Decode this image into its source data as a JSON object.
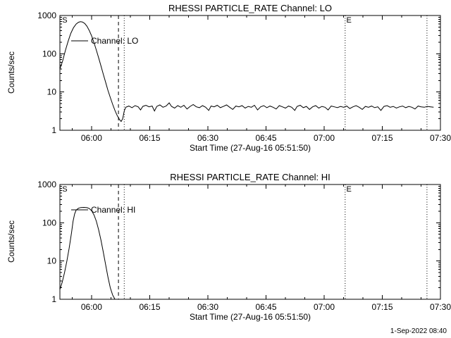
{
  "footer": {
    "timestamp": "1-Sep-2022 08:40"
  },
  "colors": {
    "background": "#ffffff",
    "foreground": "#000000"
  },
  "chart_data": [
    {
      "id": "lo",
      "type": "line",
      "title": "RHESSI PARTICLE_RATE Channel: LO",
      "xlabel": "Start Time (27-Aug-16 05:51:50)",
      "ylabel": "Counts/sec",
      "yscale": "log",
      "ylim": [
        1,
        1000
      ],
      "yticks": [
        1,
        10,
        100,
        1000
      ],
      "ytick_labels": [
        "1",
        "10",
        "100",
        "1000"
      ],
      "x_span_minutes": 98.17,
      "xticks_minutes": [
        8.17,
        23.17,
        38.17,
        53.17,
        68.17,
        83.17,
        98.17
      ],
      "xtick_labels": [
        "06:00",
        "06:15",
        "06:30",
        "06:45",
        "07:00",
        "07:15",
        "07:30"
      ],
      "x_first_minor_minute": 3.17,
      "x_minor_interval_minutes": 5,
      "grid": false,
      "legend_label": "Channel: LO",
      "line_color": "#000000",
      "vlines": [
        {
          "style": "dashed",
          "t_minutes": 15.1
        },
        {
          "style": "dotted",
          "t_minutes": 16.6
        },
        {
          "style": "dotted",
          "t_minutes": 73.6
        },
        {
          "style": "dotted",
          "t_minutes": 94.7
        }
      ],
      "letters": [
        {
          "text": "S",
          "t_minutes": 0.6
        },
        {
          "text": "E",
          "t_minutes": 73.9
        }
      ],
      "series": [
        {
          "name": "Channel: LO",
          "points_min_counts": [
            [
              0,
              40
            ],
            [
              0.7,
              65
            ],
            [
              1.4,
              120
            ],
            [
              2.1,
              210
            ],
            [
              2.8,
              340
            ],
            [
              3.5,
              480
            ],
            [
              4.2,
              600
            ],
            [
              4.8,
              665
            ],
            [
              5.3,
              690
            ],
            [
              5.8,
              678
            ],
            [
              6.4,
              620
            ],
            [
              7,
              520
            ],
            [
              7.6,
              400
            ],
            [
              8.2,
              290
            ],
            [
              8.8,
              195
            ],
            [
              9.4,
              125
            ],
            [
              10,
              78
            ],
            [
              10.6,
              48
            ],
            [
              11.2,
              29
            ],
            [
              11.8,
              18
            ],
            [
              12.4,
              11
            ],
            [
              13,
              7.2
            ],
            [
              13.6,
              4.8
            ],
            [
              14.2,
              3.3
            ],
            [
              14.8,
              2.4
            ],
            [
              15.4,
              1.9
            ],
            [
              15.8,
              1.7
            ],
            [
              16.2,
              2
            ],
            [
              16.6,
              3.2
            ],
            [
              17,
              4
            ],
            [
              17.8,
              4.3
            ],
            [
              18.6,
              3.9
            ],
            [
              19.4,
              4.4
            ],
            [
              20.2,
              4.1
            ],
            [
              20.8,
              3.4
            ],
            [
              21.4,
              4.2
            ],
            [
              22.2,
              4.5
            ],
            [
              23,
              4.1
            ],
            [
              23.8,
              4.3
            ],
            [
              24.4,
              3.2
            ],
            [
              25,
              4.2
            ],
            [
              25.8,
              4.6
            ],
            [
              26.6,
              4
            ],
            [
              27.4,
              4.3
            ],
            [
              28.2,
              5.2
            ],
            [
              28.8,
              4.2
            ],
            [
              29.6,
              3.8
            ],
            [
              30.4,
              4.4
            ],
            [
              31.2,
              4
            ],
            [
              32,
              4.5
            ],
            [
              32.8,
              3.6
            ],
            [
              33.6,
              4.2
            ],
            [
              34.4,
              4.7
            ],
            [
              35.2,
              4.1
            ],
            [
              36,
              3.9
            ],
            [
              36.8,
              4.4
            ],
            [
              37.6,
              4
            ],
            [
              38.4,
              3.3
            ],
            [
              39,
              4.3
            ],
            [
              39.8,
              4.1
            ],
            [
              40.6,
              4.5
            ],
            [
              41.4,
              3.9
            ],
            [
              42.2,
              4.2
            ],
            [
              43,
              4.6
            ],
            [
              43.8,
              4
            ],
            [
              44.6,
              3.5
            ],
            [
              45.4,
              4.3
            ],
            [
              46.2,
              4.1
            ],
            [
              47,
              4.4
            ],
            [
              47.8,
              3.8
            ],
            [
              48.6,
              4.2
            ],
            [
              49.4,
              4
            ],
            [
              50.2,
              4.5
            ],
            [
              51,
              3.4
            ],
            [
              51.8,
              4.1
            ],
            [
              52.6,
              4.4
            ],
            [
              53.4,
              3.9
            ],
            [
              54.2,
              4.3
            ],
            [
              55,
              4
            ],
            [
              55.8,
              3.6
            ],
            [
              56.6,
              4.4
            ],
            [
              57.4,
              4.1
            ],
            [
              58.2,
              3.8
            ],
            [
              59,
              4.3
            ],
            [
              59.8,
              4
            ],
            [
              60.6,
              3.3
            ],
            [
              61.2,
              4.2
            ],
            [
              62,
              4.5
            ],
            [
              62.8,
              3.9
            ],
            [
              63.6,
              4.2
            ],
            [
              64.4,
              3.5
            ],
            [
              65.2,
              4.1
            ],
            [
              66,
              4.4
            ],
            [
              66.8,
              3.8
            ],
            [
              67.6,
              4.2
            ],
            [
              68.4,
              4
            ],
            [
              69.2,
              3.4
            ],
            [
              70,
              4.3
            ],
            [
              70.8,
              4.1
            ],
            [
              71.6,
              3.9
            ],
            [
              72.4,
              4.2
            ],
            [
              73.2,
              4
            ],
            [
              74,
              4.3
            ],
            [
              74.8,
              3.7
            ],
            [
              75.6,
              4.1
            ],
            [
              76.4,
              4.4
            ],
            [
              77.2,
              4
            ],
            [
              78,
              3.5
            ],
            [
              78.8,
              4.2
            ],
            [
              79.6,
              4
            ],
            [
              80.4,
              4.3
            ],
            [
              81.2,
              3.9
            ],
            [
              82,
              4.1
            ],
            [
              82.8,
              3.3
            ],
            [
              83.6,
              4.2
            ],
            [
              84.4,
              4.4
            ],
            [
              85.2,
              4
            ],
            [
              86,
              4.2
            ],
            [
              86.8,
              3.8
            ],
            [
              87.6,
              4.1
            ],
            [
              88.4,
              4.3
            ],
            [
              89.2,
              3.9
            ],
            [
              90,
              4.2
            ],
            [
              90.8,
              4
            ],
            [
              91.6,
              3.6
            ],
            [
              92.4,
              4.3
            ],
            [
              93.2,
              4.1
            ],
            [
              94,
              4
            ],
            [
              94.8,
              4.2
            ],
            [
              95.6,
              4.1
            ],
            [
              96.4,
              4
            ]
          ]
        }
      ]
    },
    {
      "id": "hi",
      "type": "line",
      "title": "RHESSI PARTICLE_RATE Channel: HI",
      "xlabel": "Start Time (27-Aug-16 05:51:50)",
      "ylabel": "Counts/sec",
      "yscale": "log",
      "ylim": [
        1,
        1000
      ],
      "yticks": [
        1,
        10,
        100,
        1000
      ],
      "ytick_labels": [
        "1",
        "10",
        "100",
        "1000"
      ],
      "x_span_minutes": 98.17,
      "xticks_minutes": [
        8.17,
        23.17,
        38.17,
        53.17,
        68.17,
        83.17,
        98.17
      ],
      "xtick_labels": [
        "06:00",
        "06:15",
        "06:30",
        "06:45",
        "07:00",
        "07:15",
        "07:30"
      ],
      "x_first_minor_minute": 3.17,
      "x_minor_interval_minutes": 5,
      "grid": false,
      "legend_label": "Channel: HI",
      "line_color": "#000000",
      "vlines": [
        {
          "style": "dashed",
          "t_minutes": 15.1
        },
        {
          "style": "dotted",
          "t_minutes": 16.6
        },
        {
          "style": "dotted",
          "t_minutes": 73.6
        },
        {
          "style": "dotted",
          "t_minutes": 94.7
        }
      ],
      "letters": [
        {
          "text": "S",
          "t_minutes": 0.6
        },
        {
          "text": "E",
          "t_minutes": 73.9
        }
      ],
      "series": [
        {
          "name": "Channel: HI",
          "points_min_counts": [
            [
              0,
              1.8
            ],
            [
              0.6,
              2.8
            ],
            [
              1.2,
              5
            ],
            [
              1.8,
              10
            ],
            [
              2.4,
              22
            ],
            [
              3,
              55
            ],
            [
              3.4,
              110
            ],
            [
              3.8,
              170
            ],
            [
              4.2,
              215
            ],
            [
              4.8,
              240
            ],
            [
              5.4,
              250
            ],
            [
              6.2,
              252
            ],
            [
              7,
              248
            ],
            [
              7.6,
              235
            ],
            [
              8.2,
              205
            ],
            [
              8.8,
              160
            ],
            [
              9.4,
              110
            ],
            [
              10,
              65
            ],
            [
              10.6,
              35
            ],
            [
              11.2,
              17
            ],
            [
              11.8,
              8
            ],
            [
              12.4,
              3.8
            ],
            [
              13,
              2
            ],
            [
              13.6,
              1.3
            ],
            [
              14.2,
              1
            ]
          ]
        }
      ]
    }
  ]
}
